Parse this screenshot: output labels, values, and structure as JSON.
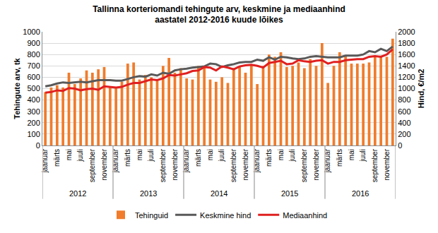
{
  "chart_data": {
    "type": "bar",
    "title": "Tallinna korteriomandi tehingute arv, keskmine ja mediaanhind\naastatel 2012-2016 kuude lõikes",
    "y_label": "Tehingute arv, tk",
    "y2_label": "Hind, €/m2",
    "categories": [
      "jaanuar",
      null,
      "märts",
      null,
      "mai",
      null,
      "juuli",
      null,
      "september",
      null,
      "november",
      null,
      "jaanuar",
      null,
      "märts",
      null,
      "mai",
      null,
      "juuli",
      null,
      "september",
      null,
      "november",
      null,
      "jaanuar",
      null,
      "märts",
      null,
      "mai",
      null,
      "juuli",
      null,
      "september",
      null,
      "november",
      null,
      "jaanuar",
      null,
      "märts",
      null,
      "mai",
      null,
      "juuli",
      null,
      "september",
      null,
      "november",
      null,
      "jaanuar",
      null,
      "märts",
      null,
      "mai",
      null,
      "juuli",
      null,
      "september",
      null,
      "november",
      null
    ],
    "groups": [
      {
        "label": "2012",
        "start": 0,
        "end": 11
      },
      {
        "label": "2013",
        "start": 12,
        "end": 23
      },
      {
        "label": "2014",
        "start": 24,
        "end": 35
      },
      {
        "label": "2015",
        "start": 36,
        "end": 47
      },
      {
        "label": "2016",
        "start": 48,
        "end": 59
      }
    ],
    "series": [
      {
        "name": "Tehinguid",
        "type": "bar",
        "color": "#f07c2c",
        "values": [
          470,
          510,
          530,
          510,
          640,
          540,
          590,
          660,
          640,
          670,
          690,
          510,
          510,
          560,
          720,
          730,
          580,
          620,
          600,
          570,
          700,
          770,
          640,
          680,
          590,
          580,
          700,
          690,
          580,
          560,
          600,
          550,
          680,
          690,
          640,
          710,
          540,
          700,
          800,
          780,
          820,
          690,
          700,
          730,
          680,
          760,
          700,
          900,
          550,
          700,
          820,
          790,
          720,
          720,
          720,
          730,
          780,
          790,
          780,
          940
        ]
      },
      {
        "name": "Keskmine hind",
        "type": "line",
        "axis": "y2",
        "color": "#595959",
        "values": [
          1040,
          1060,
          1090,
          1110,
          1100,
          1110,
          1120,
          1110,
          1130,
          1150,
          1150,
          1150,
          1140,
          1140,
          1170,
          1200,
          1220,
          1210,
          1250,
          1230,
          1280,
          1260,
          1320,
          1340,
          1350,
          1370,
          1380,
          1390,
          1440,
          1430,
          1380,
          1410,
          1430,
          1460,
          1470,
          1470,
          1510,
          1490,
          1550,
          1510,
          1560,
          1550,
          1530,
          1520,
          1530,
          1560,
          1570,
          1560,
          1550,
          1550,
          1550,
          1580,
          1580,
          1580,
          1600,
          1660,
          1640,
          1700,
          1660,
          1740
        ]
      },
      {
        "name": "Mediaanhind",
        "type": "line",
        "axis": "y2",
        "color": "#e02020",
        "values": [
          930,
          940,
          970,
          960,
          1010,
          1000,
          970,
          990,
          1000,
          980,
          1040,
          1030,
          1020,
          1030,
          1070,
          1100,
          1100,
          1130,
          1160,
          1150,
          1180,
          1240,
          1230,
          1250,
          1270,
          1310,
          1320,
          1380,
          1370,
          1320,
          1390,
          1370,
          1340,
          1390,
          1410,
          1420,
          1400,
          1370,
          1450,
          1470,
          1490,
          1430,
          1440,
          1500,
          1480,
          1470,
          1490,
          1500,
          1440,
          1470,
          1470,
          1500,
          1510,
          1520,
          1520,
          1560,
          1570,
          1560,
          1600,
          1690
        ]
      }
    ],
    "ylim": [
      0,
      1000
    ],
    "yticks": [
      0,
      100,
      200,
      300,
      400,
      500,
      600,
      700,
      800,
      900,
      1000
    ],
    "y2lim": [
      0,
      2000
    ],
    "y2ticks": [
      0,
      200,
      400,
      600,
      800,
      1000,
      1200,
      1400,
      1600,
      1800,
      2000
    ],
    "grid": true,
    "legend": "bottom"
  }
}
